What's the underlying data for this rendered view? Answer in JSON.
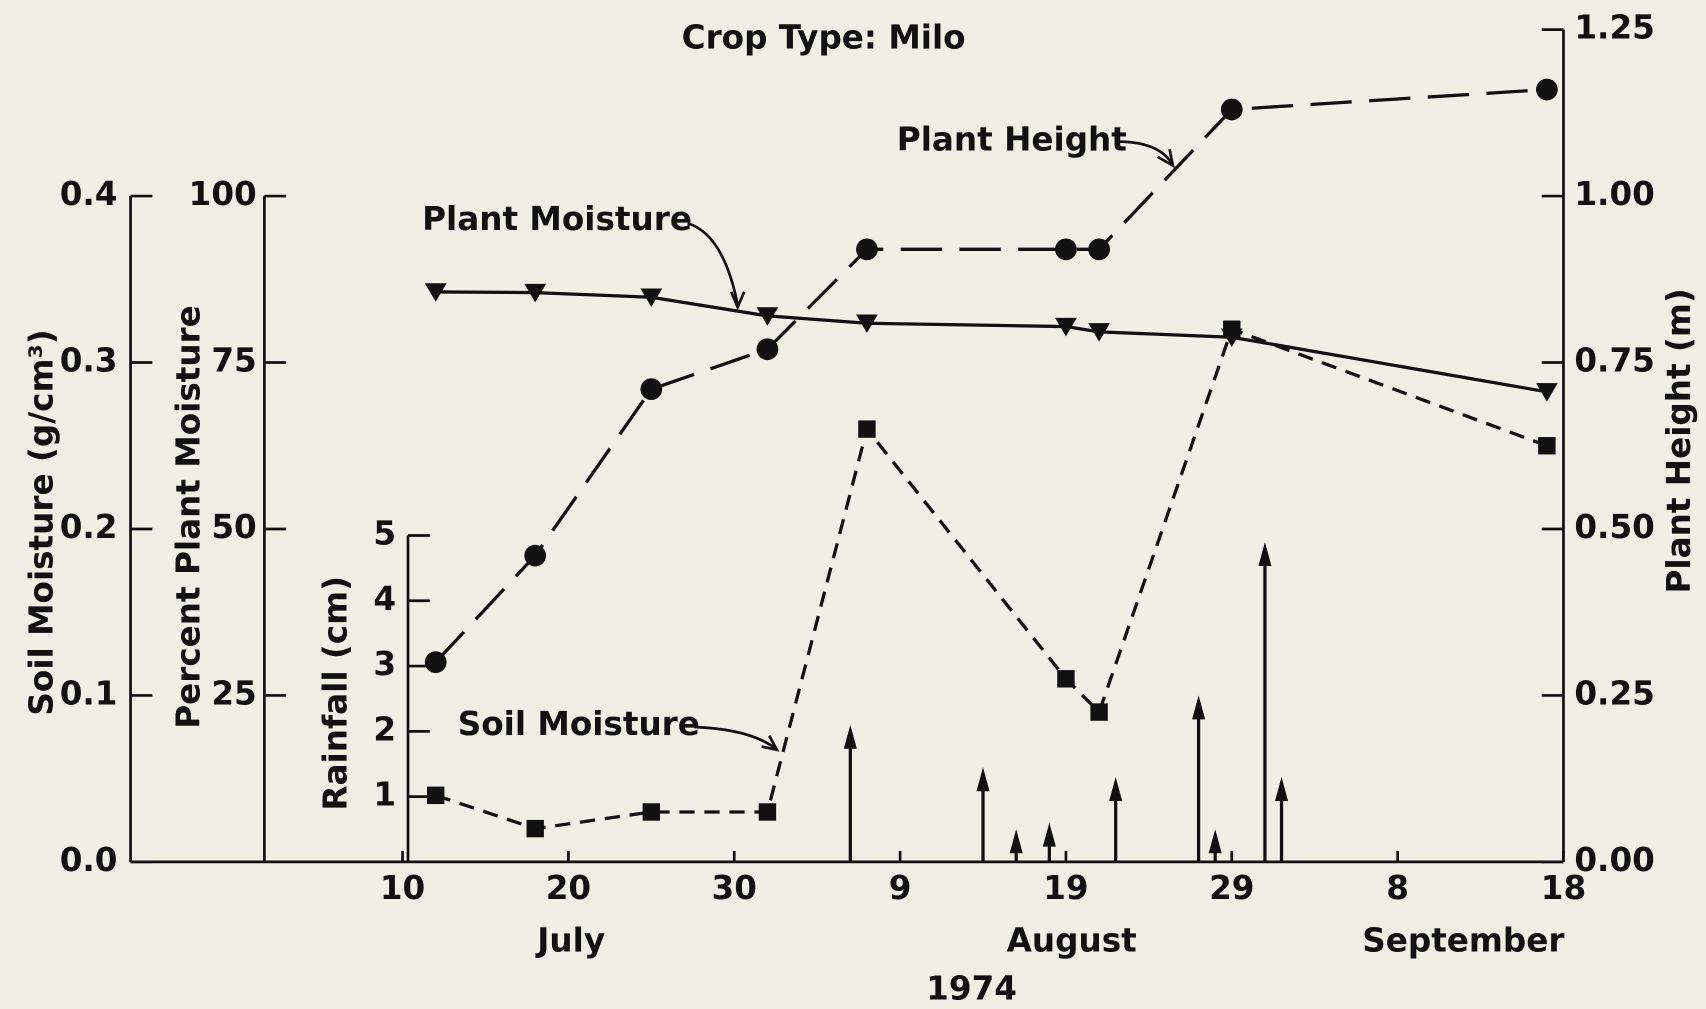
{
  "chart_data": {
    "type": "line",
    "title": "Crop Type: Milo",
    "xlim": [
      -6.4,
      80
    ],
    "xticks": [
      10,
      20,
      30,
      {
        "value": 40,
        "label": "9"
      },
      {
        "value": 50,
        "label": "19"
      },
      {
        "value": 60,
        "label": "29"
      },
      {
        "value": 70,
        "label": "8"
      },
      {
        "value": 80,
        "label": "18"
      }
    ],
    "month_labels": [
      "July",
      "August",
      "September"
    ],
    "year_label": "1974",
    "y_axes": [
      {
        "label": "Soil Moisture (g/cm³)",
        "lim": [
          0,
          0.4
        ],
        "ticks": [
          {
            "value": 0,
            "label": "0.0"
          },
          0.1,
          0.2,
          0.3,
          0.4
        ]
      },
      {
        "label": "Percent Plant Moisture",
        "lim": [
          0,
          100
        ],
        "ticks": [
          25,
          50,
          75,
          100
        ]
      },
      {
        "label": "Plant Height (m)",
        "lim": [
          0,
          1.25
        ],
        "ticks": [
          {
            "value": 0,
            "label": "0.00"
          },
          {
            "value": 0.25,
            "label": "0.25"
          },
          {
            "value": 0.5,
            "label": "0.50"
          },
          {
            "value": 0.75,
            "label": "0.75"
          },
          {
            "value": 1,
            "label": "1.00"
          },
          {
            "value": 1.25,
            "label": "1.25"
          }
        ]
      },
      {
        "label": "Rainfall (cm)",
        "lim": [
          0,
          5
        ],
        "ticks": [
          1,
          2,
          3,
          4,
          5
        ]
      }
    ],
    "series": [
      {
        "name": "Plant Moisture",
        "axis": 1,
        "marker": "triangle",
        "dash": "none",
        "color": "#111111",
        "x": [
          12,
          18,
          25,
          32,
          38,
          50,
          52,
          60,
          79
        ],
        "values": [
          85.6,
          85.5,
          84.8,
          82,
          80.9,
          80.4,
          79.6,
          78.8,
          70.6
        ]
      },
      {
        "name": "Plant Height",
        "axis": 2,
        "marker": "circle",
        "dash": "38 16",
        "color": "#111111",
        "x": [
          12,
          18,
          25,
          32,
          38,
          50,
          52,
          60,
          79
        ],
        "values": [
          0.3,
          0.46,
          0.71,
          0.77,
          0.92,
          0.92,
          0.92,
          1.13,
          1.16
        ]
      },
      {
        "name": "Soil Moisture",
        "axis": 0,
        "marker": "square",
        "dash": "14 9",
        "color": "#111111",
        "x": [
          12,
          18,
          25,
          32,
          38,
          50,
          52,
          60,
          79
        ],
        "values": [
          0.04,
          0.02,
          0.03,
          0.03,
          0.26,
          0.11,
          0.09,
          0.32,
          0.25
        ]
      }
    ],
    "rainfall": {
      "axis": 3,
      "color": "#111111",
      "x": [
        37,
        45,
        47,
        49,
        53,
        58,
        59,
        62,
        63
      ],
      "values": [
        2.1,
        1.45,
        0.5,
        0.6,
        1.3,
        2.55,
        0.5,
        4.9,
        1.3
      ]
    }
  }
}
